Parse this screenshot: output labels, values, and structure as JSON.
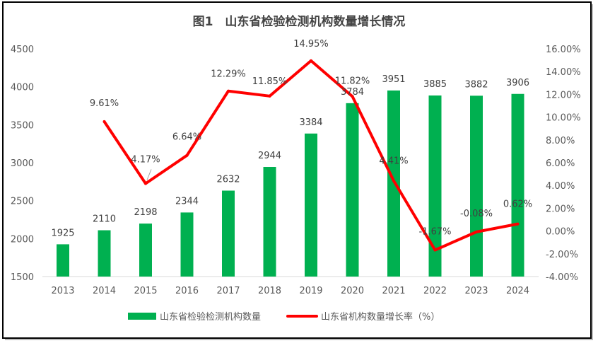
{
  "chart_data": {
    "type": "bar+line",
    "title": "图1　山东省检验检测机构数量增长情况",
    "categories": [
      "2013",
      "2014",
      "2015",
      "2016",
      "2017",
      "2018",
      "2019",
      "2020",
      "2021",
      "2022",
      "2023",
      "2024"
    ],
    "series": [
      {
        "name": "山东省检验检测机构数量",
        "type": "bar",
        "axis": "left",
        "color": "#00b050",
        "values": [
          1925,
          2110,
          2198,
          2344,
          2632,
          2944,
          3384,
          3784,
          3951,
          3885,
          3882,
          3906
        ],
        "labels": [
          "1925",
          "2110",
          "2198",
          "2344",
          "2632",
          "2944",
          "3384",
          "3784",
          "3951",
          "3885",
          "3882",
          "3906"
        ]
      },
      {
        "name": "山东省机构数量增长率（%）",
        "type": "line",
        "axis": "right",
        "color": "#ff0000",
        "values": [
          null,
          9.61,
          4.17,
          6.64,
          12.29,
          11.85,
          14.95,
          11.82,
          4.41,
          -1.67,
          -0.08,
          0.62
        ],
        "labels": [
          "",
          "9.61%",
          "4.17%",
          "6.64%",
          "12.29%",
          "11.85%",
          "14.95%",
          "11.82%",
          "4.41%",
          "-1.67%",
          "-0.08%",
          "0.62%"
        ]
      }
    ],
    "y_left": {
      "range": [
        1500,
        4500
      ],
      "ticks": [
        "1500",
        "2000",
        "2500",
        "3000",
        "3500",
        "4000",
        "4500"
      ]
    },
    "y_right": {
      "range": [
        -4,
        16
      ],
      "ticks": [
        "-4.00%",
        "-2.00%",
        "0.00%",
        "2.00%",
        "4.00%",
        "6.00%",
        "8.00%",
        "10.00%",
        "12.00%",
        "14.00%",
        "16.00%"
      ]
    },
    "grid": false,
    "legend": "bottom"
  }
}
